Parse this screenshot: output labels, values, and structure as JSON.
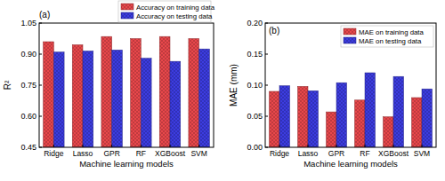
{
  "chart_data": [
    {
      "type": "bar",
      "title": "(a)",
      "x_label": "Machine learning models",
      "y_label": "R²",
      "categories": [
        "Ridge",
        "Lasso",
        "GPR",
        "RF",
        "XGBoost",
        "SVM"
      ],
      "series": [
        {
          "name": "Accuracy on training data",
          "color": "#e8474b",
          "values": [
            0.96,
            0.945,
            0.985,
            0.975,
            0.985,
            0.975
          ]
        },
        {
          "name": "Accuracy on testing data",
          "color": "#3c3ce0",
          "values": [
            0.91,
            0.915,
            0.92,
            0.88,
            0.865,
            0.925
          ]
        }
      ],
      "ylim": [
        0.45,
        1.05
      ],
      "yticks": [
        0.45,
        {
          "value": 0.6,
          "label": "0.60"
        },
        0.75,
        {
          "value": 0.9,
          "label": "0.90"
        },
        1.05
      ],
      "legend": "upper right",
      "grid": false
    },
    {
      "type": "bar",
      "title": "(b)",
      "x_label": "Machine learning models",
      "y_label": "MAE (mm)",
      "categories": [
        "Ridge",
        "Lasso",
        "GPR",
        "RF",
        "XGBoost",
        "SVM"
      ],
      "series": [
        {
          "name": "MAE on training data",
          "color": "#e8474b",
          "values": [
            0.09,
            0.098,
            0.057,
            0.076,
            0.049,
            0.08
          ]
        },
        {
          "name": "MAE on testing data",
          "color": "#3c3ce0",
          "values": [
            0.099,
            0.091,
            0.104,
            0.12,
            0.114,
            0.094
          ]
        }
      ],
      "ylim": [
        0,
        0.2
      ],
      "yticks": [
        {
          "value": 0,
          "label": "0.00"
        },
        0.05,
        {
          "value": 0.1,
          "label": "0.10"
        },
        0.15,
        {
          "value": 0.2,
          "label": "0.20"
        }
      ],
      "legend": "upper right",
      "grid": false
    }
  ]
}
